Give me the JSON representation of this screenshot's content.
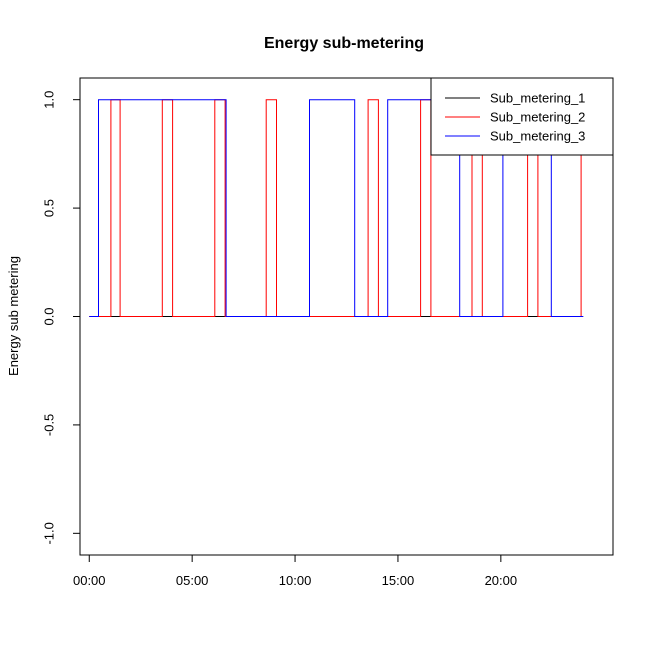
{
  "chart_data": {
    "type": "line",
    "title": "Energy sub-metering",
    "xlabel": "",
    "ylabel": "Energy sub metering",
    "xlim_hours": [
      0,
      24
    ],
    "ylim": [
      -1.1,
      1.1
    ],
    "x_ticks": [
      {
        "value": 0,
        "label": "00:00"
      },
      {
        "value": 5,
        "label": "05:00"
      },
      {
        "value": 10,
        "label": "10:00"
      },
      {
        "value": 15,
        "label": "15:00"
      },
      {
        "value": 20,
        "label": "20:00"
      }
    ],
    "y_ticks": [
      {
        "value": 1.0,
        "label": "1.0"
      },
      {
        "value": 0.5,
        "label": "0.5"
      },
      {
        "value": 0.0,
        "label": "0.0"
      },
      {
        "value": -0.5,
        "label": "-0.5"
      },
      {
        "value": -1.0,
        "label": "-1.0"
      }
    ],
    "grid": false,
    "legend_position": "top-right",
    "series": [
      {
        "name": "Sub_metering_1",
        "color": "#000000",
        "x": [
          0,
          24
        ],
        "y": [
          0,
          0
        ]
      },
      {
        "name": "Sub_metering_2",
        "color": "#ff0000",
        "x": [
          0,
          1.05,
          1.05,
          1.5,
          1.5,
          3.55,
          3.55,
          4.05,
          4.05,
          6.1,
          6.1,
          6.6,
          6.6,
          8.6,
          8.6,
          9.1,
          9.1,
          13.55,
          13.55,
          14.05,
          14.05,
          16.1,
          16.1,
          16.6,
          16.6,
          18.6,
          18.6,
          19.1,
          19.1,
          21.3,
          21.3,
          21.8,
          21.8,
          23.9,
          23.9,
          24
        ],
        "y": [
          0,
          0,
          1,
          1,
          0,
          0,
          1,
          1,
          0,
          0,
          1,
          1,
          0,
          0,
          1,
          1,
          0,
          0,
          1,
          1,
          0,
          0,
          1,
          1,
          0,
          0,
          1,
          1,
          0,
          0,
          1,
          1,
          0,
          0,
          1,
          1
        ]
      },
      {
        "name": "Sub_metering_3",
        "color": "#0000ff",
        "x": [
          0,
          0.45,
          0.45,
          6.65,
          6.65,
          10.7,
          10.7,
          12.9,
          12.9,
          14.5,
          14.5,
          18.0,
          18.0,
          20.1,
          20.1,
          22.45,
          22.45,
          24
        ],
        "y": [
          0,
          0,
          1,
          1,
          0,
          0,
          1,
          1,
          0,
          0,
          1,
          1,
          0,
          0,
          1,
          1,
          0,
          0
        ]
      }
    ]
  }
}
